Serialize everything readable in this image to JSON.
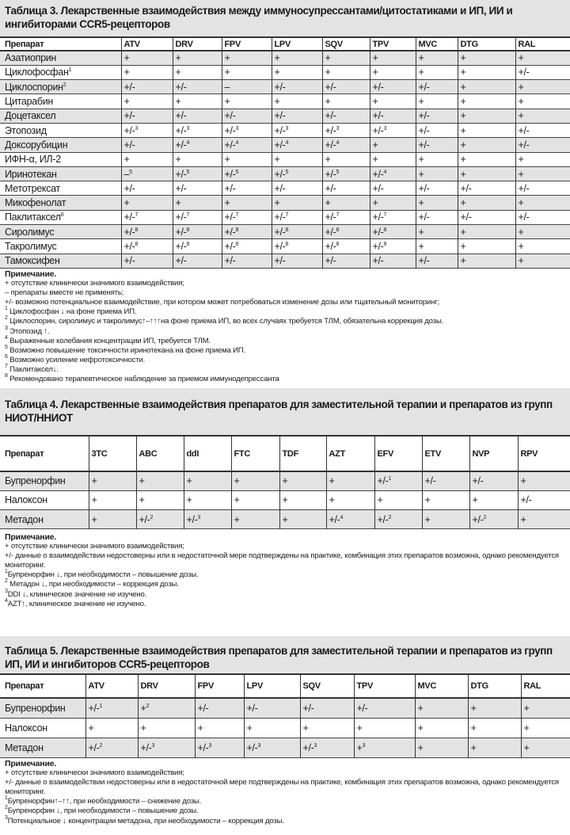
{
  "tables": [
    {
      "title": "Таблица 3. Лекарственные взаимодействия между иммуносупрессантами/цитостатиками и ИП, ИИ и ингибиторами  CCR5-рецепторов",
      "columns": [
        "Препарат",
        "ATV",
        "DRV",
        "FPV",
        "LPV",
        "SQV",
        "TPV",
        "MVC",
        "DTG",
        "RAL"
      ],
      "rows": [
        [
          "Азатиоприн",
          "+",
          "+",
          "+",
          "+",
          "+",
          "+",
          "+",
          "+",
          "+"
        ],
        [
          "Циклофосфан^1",
          "+",
          "+",
          "+",
          "+",
          "+",
          "+",
          "+",
          "+",
          "+/-"
        ],
        [
          "Циклоспорин^2",
          "+/-",
          "+/-",
          "–",
          "+/-",
          "+/-",
          "+/-",
          "+/-",
          "+",
          "+"
        ],
        [
          "Цитарабин",
          "+",
          "+",
          "+",
          "+",
          "+",
          "+",
          "+",
          "+",
          "+"
        ],
        [
          "Доцетаксел",
          "+/-",
          "+/-",
          "+/-",
          "+/-",
          "+/-",
          "+/-",
          "+/-",
          "+",
          "+"
        ],
        [
          "Этопозид",
          "+/-^3",
          "+/-^3",
          "+/-^3",
          "+/-^3",
          "+/-^3",
          "+/-^3",
          "+/-",
          "+",
          "+/-"
        ],
        [
          "Доксорубицин",
          "+/-",
          "+/-^4",
          "+/-^4",
          "+/-^4",
          "+/-^4",
          "+",
          "+/-",
          "+",
          "+/-"
        ],
        [
          "ИФН-α, ИЛ-2",
          "+",
          "+",
          "+",
          "+",
          "+",
          "+",
          "+",
          "+",
          "+"
        ],
        [
          "Иринотекан",
          "–^5",
          "+/-^5",
          "+/-^5",
          "+/-^5",
          "+/-^5",
          "+/-^4",
          "+",
          "+",
          "+"
        ],
        [
          "Метотрексат",
          "+/-",
          "+/-",
          "+/-",
          "+/-",
          "+/-",
          "+/-",
          "+/-",
          "+/-",
          "+/-"
        ],
        [
          "Микофенолат",
          "+",
          "+",
          "+",
          "+",
          "+",
          "+",
          "+",
          "+",
          "+"
        ],
        [
          "Паклитаксел^6",
          "+/-^7",
          "+/-^7",
          "+/-^7",
          "+/-^7",
          "+/-^7",
          "+/-^7",
          "+/-",
          "+/-",
          "+/-"
        ],
        [
          "Сиролимус",
          "+/-^8",
          "+/-^8",
          "+/-^8",
          "+/-^8",
          "+/-^8",
          "+/-^8",
          "+",
          "+",
          "+"
        ],
        [
          "Такролимус",
          "+/-^8",
          "+/-^8",
          "+/-^8",
          "+/-^8",
          "+/-^8",
          "+/-^8",
          "+",
          "+",
          "+"
        ],
        [
          "Тамоксифен",
          "+/-",
          "+/-",
          "+/-",
          "+/-",
          "+/-",
          "+/-",
          "+/-",
          "+",
          "+"
        ]
      ],
      "notes_heading": "Примечание.",
      "notes": [
        "+ отсутствие клинически значимого взаимодействия;",
        "– препараты вместе не применять;",
        "+/- возможно потенциальное взаимодействие, при котором может потребоваться изменение дозы или тщательный мониторинг;",
        "^1 Циклофосфан ↓ на фоне приема ИП.",
        "^2 Циклоспорин, сиролимус и такролимус↑–↑↑↑на фоне приема ИП, во всех случаях требуется ТЛМ, обязательна коррекция дозы.",
        "^3 Этопозид ↑.",
        "^4 Выраженные колебания концентрации ИП, требуется ТЛМ.",
        "^5 Возможно повышение токсичности иринотекана на фоне приема ИП.",
        "^6 Возможно усиление нефротоксичности.",
        "^7 Паклитаксел↓.",
        "^8 Рекомендовано терапевтическое наблюдение за приемом иммунодепрессанта"
      ]
    },
    {
      "title": "Таблица 4. Лекарственные взаимодействия препаратов для заместительной терапии и препаратов из групп НИОТ/ННИОТ",
      "columns": [
        "Препарат",
        "3TC",
        "ABC",
        "ddI",
        "FTC",
        "TDF",
        "AZT",
        "EFV",
        "ETV",
        "NVP",
        "RPV"
      ],
      "rows": [
        [
          "Бупренорфин",
          "+",
          "+",
          "+",
          "+",
          "+",
          "+",
          "+/-^1",
          "+/-",
          "+/-",
          "+"
        ],
        [
          "Налоксон",
          "+",
          "+",
          "+",
          "+",
          "+",
          "+",
          "+",
          "+",
          "+",
          "+/-"
        ],
        [
          "Метадон",
          "+",
          "+/-^2",
          "+/-^3",
          "+",
          "+",
          "+/-^4",
          "+/-^2",
          "+",
          "+/-^2",
          "+"
        ]
      ],
      "notes_heading": "Примечание.",
      "notes": [
        "+ отсутствие клинически значимого взаимодействия;",
        "+/- данные о взаимодействии недостоверны или в недостаточной мере подтверждены на практике, комбинация этих препаратов возможна, однако рекомендуется мониторинг.",
        "^1Бупренорфин ↓, при необходимости – повышение дозы.",
        "^2 Метадон ↓, при необходимости – коррекция дозы.",
        "^3DDI ↓, клиническое значение не изучено.",
        "^4AZT↑, клиническое значение не изучено."
      ]
    },
    {
      "title": "Таблица 5. Лекарственные взаимодействия препаратов для заместительной терапии и препаратов из групп ИП, ИИ и ингибиторов CCR5-рецепторов",
      "columns": [
        "Препарат",
        "ATV",
        "DRV",
        "FPV",
        "LPV",
        "SQV",
        "TPV",
        "MVC",
        "DTG",
        "RAL"
      ],
      "rows": [
        [
          "Бупренорфин",
          "+/-^1",
          "+^2",
          "+/-",
          "+/-",
          "+/-",
          "+/-",
          "+",
          "+",
          "+"
        ],
        [
          "Налоксон",
          "+",
          "+",
          "+",
          "+",
          "+",
          "+",
          "+",
          "+",
          "+"
        ],
        [
          "Метадон",
          "+/-^2",
          "+/-^3",
          "+/-^3",
          "+/-^3",
          "+/-^3",
          "+^3",
          "+",
          "+",
          "+"
        ]
      ],
      "notes_heading": "Примечание.",
      "notes": [
        "+ отсутствие клинически значимого взаимодействия;",
        "+/- данные о взаимодействии недостоверны или в недостаточной мере подтверждены на практике, комбинация этих препаратов возможна, однако рекомендуется мониторинг.",
        "^1Бупренорфин↑–↑↑, при необходимости – снижение дозы.",
        "^2Бупренорфин ↓, при необходимости – повышение дозы.",
        "^3Потенциальное ↓ концентрации метадона, при необходимости – коррекция дозы."
      ]
    }
  ],
  "colors": {
    "stripe": "#e3e3e3",
    "text": "#1a1a1a"
  }
}
